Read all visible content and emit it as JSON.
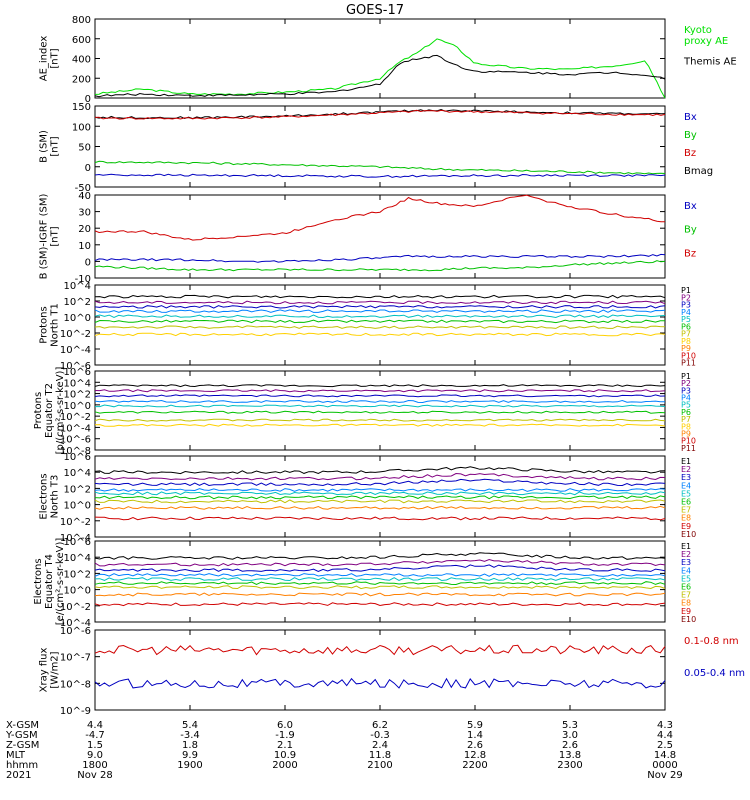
{
  "title": "GOES-17",
  "chart_data": [
    {
      "type": "line",
      "ylabel": "AE_index\n[nT]",
      "ylim": [
        0,
        800
      ],
      "yticks": [
        "0",
        "200",
        "400",
        "600",
        "800"
      ],
      "legend": [
        {
          "text": "Kyoto\nproxy AE",
          "color": "#00e000"
        },
        {
          "text": "Themis AE",
          "color": "#000000"
        }
      ],
      "x": [
        18.0,
        18.5,
        19.0,
        19.5,
        20.0,
        20.5,
        21.0,
        21.2,
        21.4,
        21.6,
        21.8,
        22.0,
        22.5,
        23.0,
        23.5,
        23.8,
        24.0
      ],
      "series": [
        {
          "color": "#00e000",
          "values": [
            40,
            90,
            40,
            40,
            60,
            90,
            200,
            360,
            460,
            600,
            520,
            350,
            300,
            290,
            330,
            380,
            0
          ]
        },
        {
          "color": "#000000",
          "values": [
            20,
            40,
            25,
            30,
            40,
            60,
            140,
            350,
            400,
            430,
            330,
            270,
            260,
            240,
            260,
            230,
            200
          ]
        }
      ]
    },
    {
      "type": "line",
      "ylabel": "B (SM)\n[nT]",
      "ylim": [
        -50,
        150
      ],
      "yticks": [
        "-50",
        "0",
        "50",
        "100",
        "150"
      ],
      "legend": [
        {
          "text": "Bx",
          "color": "#0000c0"
        },
        {
          "text": "By",
          "color": "#00c000"
        },
        {
          "text": "Bz",
          "color": "#d00000"
        },
        {
          "text": "Bmag",
          "color": "#000000"
        }
      ],
      "x": [
        18.0,
        19.0,
        20.0,
        21.0,
        21.5,
        22.0,
        23.0,
        24.0
      ],
      "series": [
        {
          "color": "#000000",
          "values": [
            122,
            121,
            125,
            135,
            140,
            138,
            133,
            130
          ]
        },
        {
          "color": "#d00000",
          "values": [
            120,
            119,
            123,
            133,
            138,
            136,
            131,
            128
          ]
        },
        {
          "color": "#00c000",
          "values": [
            12,
            10,
            5,
            0,
            -5,
            -8,
            -12,
            -18
          ]
        },
        {
          "color": "#0000c0",
          "values": [
            -20,
            -21,
            -22,
            -24,
            -23,
            -22,
            -21,
            -22
          ]
        }
      ]
    },
    {
      "type": "line",
      "ylabel": "B (SM)-IGRF (SM)\n[nT]",
      "ylim": [
        -10,
        40
      ],
      "yticks": [
        "-10",
        "0",
        "10",
        "20",
        "30",
        "40"
      ],
      "legend": [
        {
          "text": "Bx",
          "color": "#0000c0"
        },
        {
          "text": "By",
          "color": "#00c000"
        },
        {
          "text": "Bz",
          "color": "#d00000"
        }
      ],
      "x": [
        18.0,
        18.5,
        19.0,
        19.5,
        20.0,
        20.5,
        21.0,
        21.3,
        21.6,
        22.0,
        22.5,
        23.0,
        23.5,
        24.0
      ],
      "series": [
        {
          "color": "#d00000",
          "values": [
            18,
            18,
            13,
            15,
            17,
            25,
            30,
            38,
            35,
            33,
            40,
            33,
            28,
            24
          ]
        },
        {
          "color": "#0000c0",
          "values": [
            1,
            1,
            1,
            0,
            0,
            1,
            2,
            3,
            3,
            3,
            3,
            3,
            3,
            4
          ]
        },
        {
          "color": "#00c000",
          "values": [
            -3,
            -4,
            -5,
            -5,
            -5,
            -5,
            -5,
            -5,
            -5,
            -4,
            -4,
            -2,
            -1,
            0
          ]
        }
      ]
    },
    {
      "type": "line",
      "log": true,
      "ylabel": "Protons\nNorth T1",
      "ylim": [
        -7,
        4
      ],
      "yticks": [
        "10^4",
        "10^2",
        "10^0",
        "10^-2",
        "10^-4",
        "10^-6"
      ],
      "legend": [
        {
          "text": "P1",
          "color": "#000000"
        },
        {
          "text": "P2",
          "color": "#800080"
        },
        {
          "text": "P3",
          "color": "#0000c0"
        },
        {
          "text": "P4",
          "color": "#0080ff"
        },
        {
          "text": "P5",
          "color": "#00c0c0"
        },
        {
          "text": "P6",
          "color": "#00c000"
        },
        {
          "text": "P7",
          "color": "#c0c000"
        },
        {
          "text": "P8",
          "color": "#ffd000"
        },
        {
          "text": "P9",
          "color": "#ff8000"
        },
        {
          "text": "P10",
          "color": "#d00000"
        },
        {
          "text": "P11",
          "color": "#800000"
        }
      ],
      "series": [
        {
          "color": "#000000",
          "level": 2.4
        },
        {
          "color": "#800080",
          "level": 1.6
        },
        {
          "color": "#0000c0",
          "level": 1.0
        },
        {
          "color": "#0080ff",
          "level": 0.4
        },
        {
          "color": "#00c0c0",
          "level": -0.3
        },
        {
          "color": "#00c000",
          "level": -1.0
        },
        {
          "color": "#c0c000",
          "level": -1.8
        },
        {
          "color": "#ffd000",
          "level": -2.8
        }
      ]
    },
    {
      "type": "line",
      "log": true,
      "ylabel": "Protons\nEquator T2\n[p/(cm²-s-sr-keV)]",
      "ylim": [
        -8,
        6
      ],
      "yticks": [
        "10^6",
        "10^4",
        "10^2",
        "10^0",
        "10^-2",
        "10^-4",
        "10^-6",
        "10^-8"
      ],
      "legend": [
        {
          "text": "P1",
          "color": "#000000"
        },
        {
          "text": "P2",
          "color": "#800080"
        },
        {
          "text": "P3",
          "color": "#0000c0"
        },
        {
          "text": "P4",
          "color": "#0080ff"
        },
        {
          "text": "P5",
          "color": "#00c0c0"
        },
        {
          "text": "P6",
          "color": "#00c000"
        },
        {
          "text": "P7",
          "color": "#c0c000"
        },
        {
          "text": "P8",
          "color": "#ffd000"
        },
        {
          "text": "P9",
          "color": "#ff8000"
        },
        {
          "text": "P10",
          "color": "#d00000"
        },
        {
          "text": "P11",
          "color": "#800000"
        }
      ],
      "series": [
        {
          "color": "#000000",
          "level": 3.4
        },
        {
          "color": "#800080",
          "level": 2.5
        },
        {
          "color": "#0000c0",
          "level": 1.6
        },
        {
          "color": "#0080ff",
          "level": 0.6
        },
        {
          "color": "#00c0c0",
          "level": -0.2
        },
        {
          "color": "#00c000",
          "level": -1.3
        },
        {
          "color": "#c0c000",
          "level": -2.7
        },
        {
          "color": "#ffd000",
          "level": -3.6
        }
      ]
    },
    {
      "type": "line",
      "log": true,
      "ylabel": "Electrons\nNorth T3",
      "ylim": [
        -4,
        6
      ],
      "yticks": [
        "10^6",
        "10^4",
        "10^2",
        "10^0",
        "10^-2",
        "10^-4"
      ],
      "legend": [
        {
          "text": "E1",
          "color": "#000000"
        },
        {
          "text": "E2",
          "color": "#800080"
        },
        {
          "text": "E3",
          "color": "#0000c0"
        },
        {
          "text": "E4",
          "color": "#0080ff"
        },
        {
          "text": "E5",
          "color": "#00c0c0"
        },
        {
          "text": "E6",
          "color": "#00c000"
        },
        {
          "text": "E7",
          "color": "#c0c000"
        },
        {
          "text": "E8",
          "color": "#ff8000"
        },
        {
          "text": "E9",
          "color": "#d00000"
        },
        {
          "text": "E10",
          "color": "#800000"
        }
      ],
      "series": [
        {
          "color": "#000000",
          "level": 4.0
        },
        {
          "color": "#800080",
          "level": 3.2
        },
        {
          "color": "#0000c0",
          "level": 2.5
        },
        {
          "color": "#0080ff",
          "level": 1.8
        },
        {
          "color": "#00c0c0",
          "level": 1.4
        },
        {
          "color": "#00c000",
          "level": 0.9
        },
        {
          "color": "#c0c000",
          "level": 0.4
        },
        {
          "color": "#ff8000",
          "level": -0.4
        },
        {
          "color": "#d00000",
          "level": -1.7
        }
      ]
    },
    {
      "type": "line",
      "log": true,
      "ylabel": "Electrons\nEquator T4\n[e/(cm²-s-sr-keV)]",
      "ylim": [
        -4,
        6
      ],
      "yticks": [
        "10^6",
        "10^4",
        "10^2",
        "10^0",
        "10^-2",
        "10^-4"
      ],
      "legend": [
        {
          "text": "E1",
          "color": "#000000"
        },
        {
          "text": "E2",
          "color": "#800080"
        },
        {
          "text": "E3",
          "color": "#0000c0"
        },
        {
          "text": "E4",
          "color": "#0080ff"
        },
        {
          "text": "E5",
          "color": "#00c0c0"
        },
        {
          "text": "E6",
          "color": "#00c000"
        },
        {
          "text": "E7",
          "color": "#c0c000"
        },
        {
          "text": "E8",
          "color": "#ff8000"
        },
        {
          "text": "E9",
          "color": "#d00000"
        },
        {
          "text": "E10",
          "color": "#800000"
        }
      ],
      "series": [
        {
          "color": "#000000",
          "level": 3.9
        },
        {
          "color": "#800080",
          "level": 3.1
        },
        {
          "color": "#0000c0",
          "level": 2.4
        },
        {
          "color": "#0080ff",
          "level": 1.8
        },
        {
          "color": "#00c0c0",
          "level": 1.3
        },
        {
          "color": "#00c000",
          "level": 0.8
        },
        {
          "color": "#c0c000",
          "level": 0.3
        },
        {
          "color": "#ff8000",
          "level": -0.6
        },
        {
          "color": "#d00000",
          "level": -1.8
        }
      ]
    },
    {
      "type": "line",
      "log": true,
      "ylabel": "Xray flux\n[W/m2]",
      "ylim": [
        -9,
        -6
      ],
      "yticks": [
        "10^-6",
        "10^-7",
        "10^-8",
        "10^-9"
      ],
      "legend": [
        {
          "text": "0.1-0.8 nm",
          "color": "#d00000"
        },
        {
          "text": "0.05-0.4 nm",
          "color": "#0000c0"
        }
      ],
      "series": [
        {
          "color": "#d00000",
          "level": -6.75
        },
        {
          "color": "#0000c0",
          "level": -8.0
        }
      ]
    }
  ],
  "x_axis": {
    "row_labels": [
      "X-GSM",
      "Y-GSM",
      "Z-GSM",
      "MLT",
      "hhmm",
      "2021"
    ],
    "columns": [
      [
        "4.4",
        "-4.7",
        "1.5",
        "9.0",
        "1800",
        "Nov 28"
      ],
      [
        "5.4",
        "-3.4",
        "1.8",
        "9.9",
        "1900",
        ""
      ],
      [
        "6.0",
        "-1.9",
        "2.1",
        "10.9",
        "2000",
        ""
      ],
      [
        "6.2",
        "-0.3",
        "2.4",
        "11.8",
        "2100",
        ""
      ],
      [
        "5.9",
        "1.4",
        "2.6",
        "12.8",
        "2200",
        ""
      ],
      [
        "5.3",
        "3.0",
        "2.6",
        "13.8",
        "2300",
        ""
      ],
      [
        "4.3",
        "4.4",
        "2.5",
        "14.8",
        "0000",
        "Nov 29"
      ]
    ]
  }
}
